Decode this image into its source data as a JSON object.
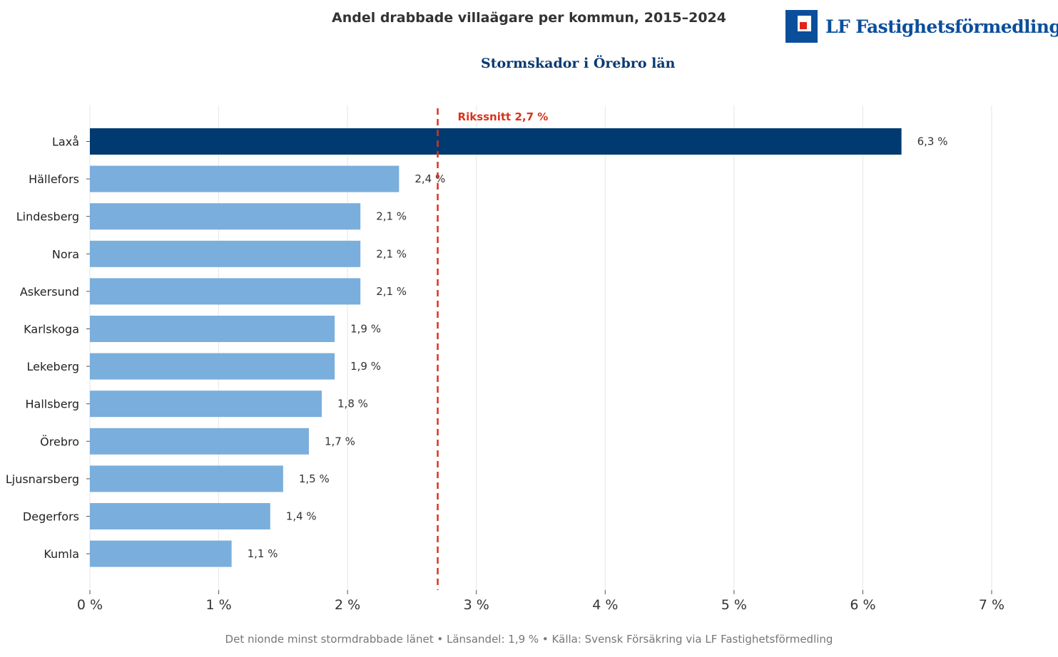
{
  "brand": {
    "logo_text": "LF Fastighetsförmedling",
    "primary_color": "#0b4f9c",
    "accent_color": "#e2231a"
  },
  "footer": {
    "note": "Det nionde minst stormdrabbade länet  •  Länsandel: 1,9 %  •  Källa: Svensk Försäkring via LF Fastighetsförmedling"
  },
  "chart_data": {
    "type": "bar",
    "orientation": "horizontal",
    "title": "Andel drabbade villaägare per kommun, 2015–2024",
    "subtitle": "Stormskador i Örebro län",
    "xlabel": "",
    "ylabel": "",
    "categories": [
      "Laxå",
      "Hällefors",
      "Lindesberg",
      "Nora",
      "Askersund",
      "Karlskoga",
      "Lekeberg",
      "Hallsberg",
      "Örebro",
      "Ljusnarsberg",
      "Degerfors",
      "Kumla"
    ],
    "values": [
      6.3,
      2.4,
      2.1,
      2.1,
      2.1,
      1.9,
      1.9,
      1.8,
      1.7,
      1.5,
      1.4,
      1.1
    ],
    "value_labels": [
      "6,3 %",
      "2,4 %",
      "2,1 %",
      "2,1 %",
      "2,1 %",
      "1,9 %",
      "1,9 %",
      "1,8 %",
      "1,7 %",
      "1,5 %",
      "1,4 %",
      "1,1 %"
    ],
    "highlight_index": 0,
    "colors": {
      "highlight": "#003a70",
      "default": "#7aaedc",
      "reference": "#d9331e",
      "grid": "#e6e6e6"
    },
    "xlim": [
      0,
      7
    ],
    "x_ticks": [
      0,
      1,
      2,
      3,
      4,
      5,
      6,
      7
    ],
    "x_tick_labels": [
      "0 %",
      "1 %",
      "2 %",
      "3 %",
      "4 %",
      "5 %",
      "6 %",
      "7 %"
    ],
    "grid": true,
    "reference_line": {
      "value": 2.7,
      "label": "Rikssnitt 2,7 %"
    }
  }
}
